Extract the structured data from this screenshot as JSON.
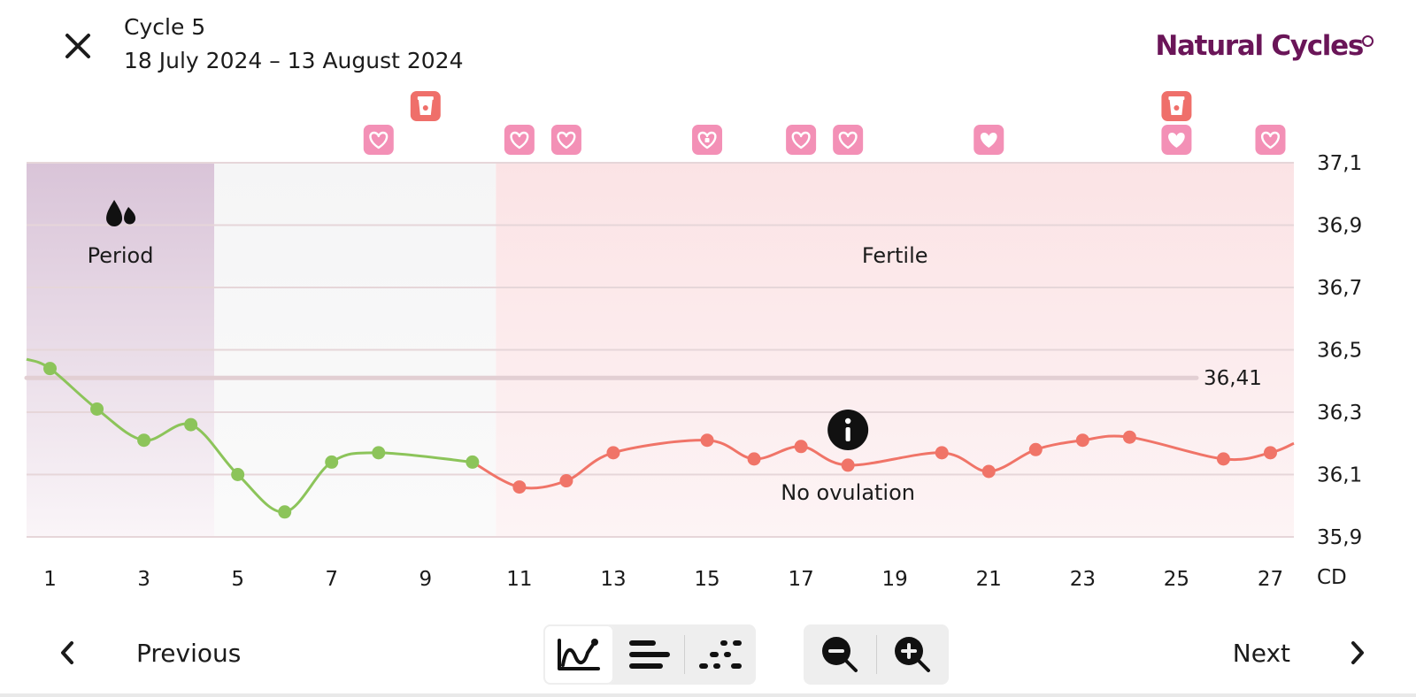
{
  "header": {
    "cycle_title": "Cycle 5",
    "date_range": "18 July 2024 – 13 August 2024",
    "brand": "Natural Cycles"
  },
  "colors": {
    "brand": "#6a1558",
    "period_band": "#d9c4d8",
    "fertile_band": "#fbe3e5",
    "green_line": "#8cc45a",
    "red_line": "#f07468",
    "heart_badge": "#f390b6",
    "test_badge": "#ef6f6a"
  },
  "chart_data": {
    "type": "line",
    "x_axis_label": "CD",
    "x_ticks": [
      "1",
      "3",
      "5",
      "7",
      "9",
      "11",
      "13",
      "15",
      "17",
      "19",
      "21",
      "23",
      "25",
      "27"
    ],
    "y_ticks": [
      "37,1",
      "36,9",
      "36,7",
      "36,5",
      "36,3",
      "36,1",
      "35,9"
    ],
    "ylim": [
      35.9,
      37.1
    ],
    "xlim": [
      0.5,
      27.5
    ],
    "coverline_value": 36.41,
    "coverline_label": "36,41",
    "phases": [
      {
        "name": "period",
        "label": "Period",
        "from": 0.5,
        "to": 4.5,
        "icon": "drops-icon"
      },
      {
        "name": "neutral",
        "label": "",
        "from": 4.5,
        "to": 10.5
      },
      {
        "name": "fertile",
        "label": "Fertile",
        "from": 10.5,
        "to": 27.5
      }
    ],
    "annotation": {
      "label": "No ovulation",
      "icon": "info-icon",
      "day": 18
    },
    "series": [
      {
        "color": "green",
        "points": [
          {
            "x": 1,
            "y": 36.44
          },
          {
            "x": 2,
            "y": 36.31
          },
          {
            "x": 3,
            "y": 36.21
          },
          {
            "x": 4,
            "y": 36.26
          },
          {
            "x": 5,
            "y": 36.1
          },
          {
            "x": 6,
            "y": 35.98
          },
          {
            "x": 7,
            "y": 36.14
          },
          {
            "x": 8,
            "y": 36.17
          },
          {
            "x": 10,
            "y": 36.14
          }
        ],
        "lead_in": 36.47
      },
      {
        "color": "red",
        "points": [
          {
            "x": 11,
            "y": 36.06
          },
          {
            "x": 12,
            "y": 36.08
          },
          {
            "x": 13,
            "y": 36.17
          },
          {
            "x": 15,
            "y": 36.21
          },
          {
            "x": 16,
            "y": 36.15
          },
          {
            "x": 17,
            "y": 36.19
          },
          {
            "x": 18,
            "y": 36.13
          },
          {
            "x": 20,
            "y": 36.17
          },
          {
            "x": 21,
            "y": 36.11
          },
          {
            "x": 22,
            "y": 36.18
          },
          {
            "x": 23,
            "y": 36.21
          },
          {
            "x": 24,
            "y": 36.22
          },
          {
            "x": 26,
            "y": 36.15
          },
          {
            "x": 27,
            "y": 36.17
          }
        ],
        "lead_out": 36.2
      }
    ],
    "markers": [
      {
        "day": 8,
        "row": "lower",
        "kind": "heart-outline"
      },
      {
        "day": 9,
        "row": "upper",
        "kind": "test"
      },
      {
        "day": 11,
        "row": "lower",
        "kind": "heart-outline"
      },
      {
        "day": 12,
        "row": "lower",
        "kind": "heart-outline"
      },
      {
        "day": 15,
        "row": "lower",
        "kind": "heart-protected"
      },
      {
        "day": 17,
        "row": "lower",
        "kind": "heart-outline"
      },
      {
        "day": 18,
        "row": "lower",
        "kind": "heart-outline"
      },
      {
        "day": 21,
        "row": "lower",
        "kind": "heart-filled"
      },
      {
        "day": 25,
        "row": "upper",
        "kind": "test"
      },
      {
        "day": 25,
        "row": "lower",
        "kind": "heart-filled"
      },
      {
        "day": 27,
        "row": "lower",
        "kind": "heart-outline"
      }
    ]
  },
  "footer": {
    "previous_label": "Previous",
    "next_label": "Next",
    "view_buttons": [
      "graph-view",
      "list-view",
      "dots-view"
    ],
    "active_view": "graph-view",
    "zoom_buttons": [
      "zoom-out",
      "zoom-in"
    ]
  }
}
